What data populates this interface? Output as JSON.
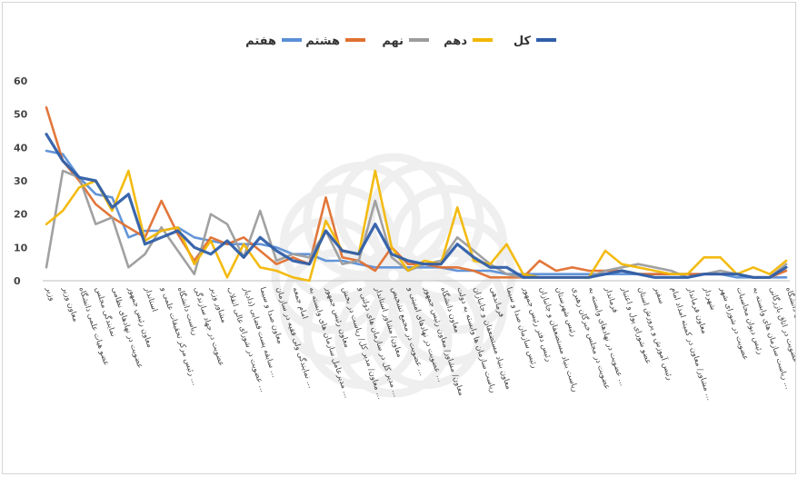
{
  "chart_data": {
    "type": "line",
    "ylim": [
      0,
      60
    ],
    "yticks": [
      0,
      10,
      20,
      30,
      40,
      50,
      60
    ],
    "grid": false,
    "legend_position": "top-center",
    "categories": [
      "وزیر",
      "معاون وزیر",
      "عضو هیات علمی دانشگاه",
      "نمایندگی مجلس",
      "عضویت در نهادهای نظامی",
      "معاون رئیس جمهور",
      "استاندار",
      "رئیس مرکز تحقیقات علمی و ...",
      "ریاست دانشگاه",
      "عضویت در جهاد سازندگی",
      "مشاور وزیر",
      "عضویت در شورای عالی انقلاب ...",
      "سابقه پست قضایی (دادیار ...",
      "معاون صدا و سیما",
      "نمایندگی ولی فقیه در سازمان ...",
      "امام جمعه",
      "مدیرعامل سازمان های وابسته به ...",
      "معاون رئیس جمهور",
      "معاون/ مدیر کل/ ریاست در بخش ...",
      "مدیر کل در سازمان های دولتی و ...",
      "معاون/ مشاور استاندار",
      "عضویت در مجمع تشخیص ...",
      "عضویت در نهادهای امنیتی و ...",
      "معاون/ مشاور/ معاون رئیس جمهور",
      "معاون دانشگاه",
      "ریاست سازمان ها وابسته به دولت",
      "معاون بنیاد مستضعفان و جانبازان",
      "فرماندهی",
      "رئیس سازمان صدا و سیما",
      "رئیس دفتر رئیس جمهور",
      "ریاست بنیاد مستضعفان و جانبازان",
      "رئیس شهرستان",
      "عضویت در مجلس خبرگان رهبری",
      "عضویت در نهادهای وابسته به ...",
      "فرماندار",
      "عضو شورای پول و اعتبار",
      "رئیس آموزش و پرورش استان",
      "سفیر",
      "مشاور/ معاون در کمیته امداد امام ...",
      "معاون فرماندار",
      "شهردار",
      "عضویت در شورای شهر",
      "رئیس دیوان محاسبات",
      "ریاست سازمان های وابسته به ...",
      "عضویت در اتاق بازرگانی",
      "عضویت در هیات امنای دانشگاه"
    ],
    "series": [
      {
        "name": "کل",
        "color": "#2f5ea8",
        "values": [
          44,
          36,
          31,
          30,
          22,
          26,
          11,
          13,
          15,
          10,
          8,
          12,
          7,
          13,
          9,
          6,
          5,
          15,
          9,
          8,
          17,
          8,
          6,
          5,
          5,
          11,
          7,
          4,
          4,
          1,
          1,
          1,
          1,
          1,
          2,
          3,
          2,
          1,
          1,
          1,
          2,
          2,
          2,
          1,
          1,
          4
        ]
      },
      {
        "name": "دهم",
        "color": "#f2b705",
        "values": [
          17,
          21,
          28,
          30,
          21,
          33,
          12,
          15,
          16,
          5,
          12,
          1,
          11,
          4,
          3,
          1,
          0,
          18,
          9,
          8,
          33,
          10,
          3,
          6,
          5,
          22,
          6,
          5,
          11,
          2,
          1,
          1,
          1,
          1,
          9,
          5,
          4,
          3,
          2,
          2,
          7,
          7,
          2,
          4,
          2,
          6
        ]
      },
      {
        "name": "نهم",
        "color": "#9c9c9c",
        "values": [
          4,
          33,
          31,
          17,
          19,
          4,
          8,
          16,
          9,
          2,
          20,
          17,
          7,
          21,
          6,
          8,
          7,
          15,
          5,
          6,
          24,
          7,
          3,
          5,
          6,
          13,
          9,
          5,
          2,
          1,
          1,
          1,
          1,
          1,
          3,
          4,
          5,
          4,
          3,
          1,
          2,
          3,
          2,
          1,
          1,
          5
        ]
      },
      {
        "name": "هشتم",
        "color": "#e07030",
        "values": [
          52,
          36,
          30,
          23,
          19,
          16,
          13,
          24,
          14,
          6,
          13,
          11,
          13,
          9,
          5,
          7,
          5,
          25,
          7,
          6,
          3,
          10,
          5,
          5,
          4,
          4,
          3,
          1,
          1,
          1,
          6,
          3,
          4,
          3,
          3,
          3,
          2,
          2,
          2,
          2,
          2,
          2,
          2,
          1,
          1,
          3
        ]
      },
      {
        "name": "هفتم",
        "color": "#5b8fd6",
        "values": [
          39,
          38,
          31,
          26,
          25,
          13,
          15,
          15,
          16,
          13,
          12,
          11,
          11,
          11,
          10,
          8,
          8,
          6,
          6,
          5,
          4,
          4,
          4,
          4,
          4,
          3,
          3,
          3,
          2,
          2,
          2,
          2,
          2,
          2,
          2,
          2,
          2,
          2,
          2,
          2,
          2,
          2,
          1,
          1,
          1,
          1
        ]
      }
    ],
    "legend_order": [
      "کل",
      "دهم",
      "نهم",
      "هشتم",
      "هفتم"
    ]
  }
}
